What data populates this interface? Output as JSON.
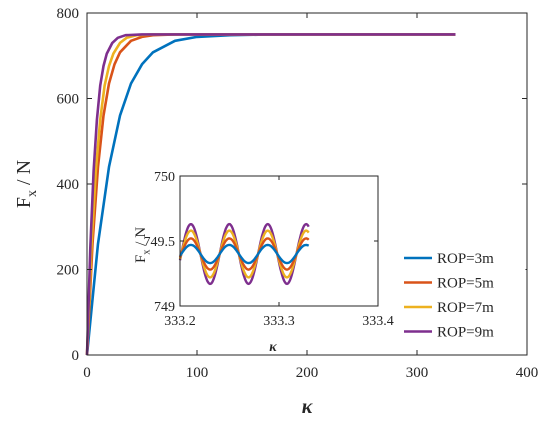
{
  "chart_data": [
    {
      "type": "line",
      "xlabel": "κ",
      "ylabel": "Fx / N",
      "xlim": [
        0,
        400
      ],
      "ylim": [
        0,
        800
      ],
      "xticks": [
        0,
        100,
        200,
        300,
        400
      ],
      "yticks": [
        0,
        200,
        400,
        600,
        800
      ],
      "grid": false,
      "legend_position": "bottom-right",
      "series": [
        {
          "name": "ROP=3m",
          "color": "#0072BD",
          "x": [
            0,
            10,
            20,
            30,
            40,
            50,
            60,
            80,
            100,
            130,
            160,
            200,
            250,
            300,
            335
          ],
          "values": [
            0,
            260,
            440,
            560,
            635,
            680,
            708,
            735,
            744,
            748,
            749.5,
            750,
            750,
            750,
            750
          ]
        },
        {
          "name": "ROP=5m",
          "color": "#D95319",
          "x": [
            0,
            5,
            10,
            15,
            20,
            25,
            30,
            40,
            50,
            60,
            80,
            100,
            150,
            200,
            335
          ],
          "values": [
            0,
            260,
            440,
            560,
            635,
            680,
            708,
            735,
            744,
            748,
            750,
            750,
            750,
            750,
            750
          ]
        },
        {
          "name": "ROP=7m",
          "color": "#EDB120",
          "x": [
            0,
            4,
            8,
            12,
            16,
            20,
            24,
            30,
            36,
            45,
            60,
            80,
            150,
            335
          ],
          "values": [
            0,
            250,
            430,
            550,
            630,
            676,
            705,
            730,
            742,
            748,
            750,
            750,
            750,
            750
          ]
        },
        {
          "name": "ROP=9m",
          "color": "#7E2F8E",
          "x": [
            0,
            3,
            6,
            9,
            12,
            15,
            18,
            23,
            28,
            35,
            50,
            70,
            150,
            335
          ],
          "values": [
            0,
            250,
            430,
            550,
            630,
            676,
            705,
            730,
            742,
            748,
            750,
            750,
            750,
            750
          ]
        }
      ]
    },
    {
      "type": "line",
      "xlabel": "κ",
      "ylabel": "Fx / N",
      "xlim": [
        333.2,
        333.4
      ],
      "ylim": [
        749,
        750
      ],
      "xticks": [
        333.2,
        333.3,
        333.4
      ],
      "yticks": [
        749,
        749.5,
        750
      ],
      "grid": false,
      "oscillation": {
        "center": 749.4,
        "period": 0.0388,
        "phase_x": 333.211
      },
      "x_range": [
        333.2,
        333.33
      ],
      "series": [
        {
          "name": "ROP=3m",
          "color": "#0072BD",
          "amplitude": 0.07
        },
        {
          "name": "ROP=5m",
          "color": "#D95319",
          "amplitude": 0.12
        },
        {
          "name": "ROP=7m",
          "color": "#EDB120",
          "amplitude": 0.18
        },
        {
          "name": "ROP=9m",
          "color": "#7E2F8E",
          "amplitude": 0.23
        }
      ]
    }
  ]
}
